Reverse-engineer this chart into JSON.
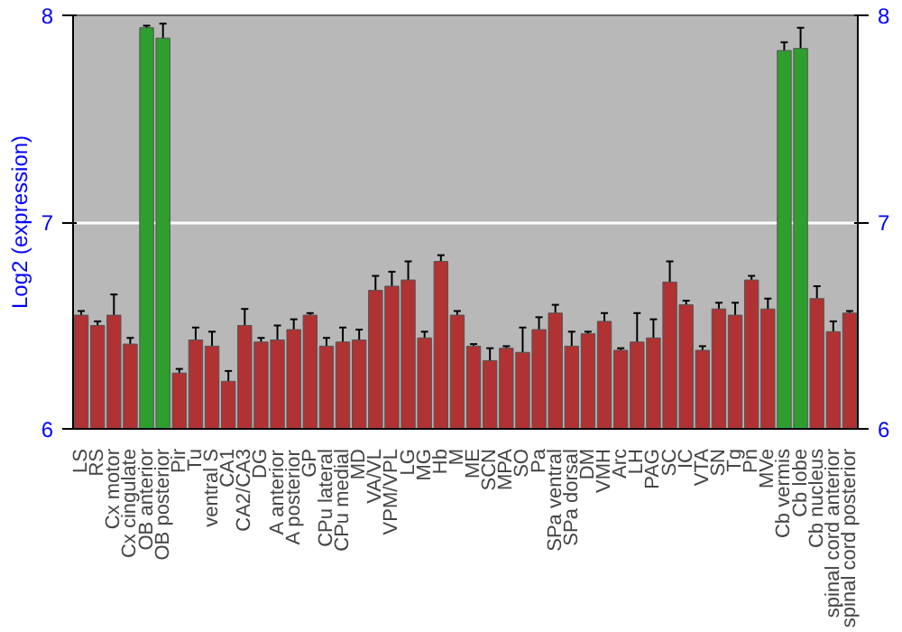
{
  "chart_data": {
    "type": "bar",
    "ylabel": "Log2 (expression)",
    "categories": [
      "LS",
      "RS",
      "Cx motor",
      "Cx cingulate",
      "OB anterior",
      "OB posterior",
      "Pir",
      "Tu",
      "ventral S",
      "CA1",
      "CA2/CA3",
      "DG",
      "A anterior",
      "A posterior",
      "GP",
      "CPu lateral",
      "CPu medial",
      "MD",
      "VA/VL",
      "VPM/VPL",
      "LG",
      "MG",
      "Hb",
      "M",
      "ME",
      "SCN",
      "MPA",
      "SO",
      "Pa",
      "SPa ventral",
      "SPa dorsal",
      "DM",
      "VMH",
      "Arc",
      "LH",
      "PAG",
      "SC",
      "IC",
      "VTA",
      "SN",
      "Tg",
      "Pn",
      "MVe",
      "Cb vermis",
      "Cb lobe",
      "Cb nucleus",
      "spinal cord anterior",
      "spinal cord posterior"
    ],
    "values": [
      6.55,
      6.5,
      6.55,
      6.41,
      7.94,
      7.89,
      6.27,
      6.43,
      6.4,
      6.23,
      6.5,
      6.42,
      6.43,
      6.48,
      6.55,
      6.4,
      6.42,
      6.43,
      6.67,
      6.69,
      6.72,
      6.44,
      6.81,
      6.55,
      6.4,
      6.33,
      6.39,
      6.37,
      6.48,
      6.56,
      6.4,
      6.46,
      6.52,
      6.38,
      6.42,
      6.44,
      6.71,
      6.6,
      6.38,
      6.58,
      6.55,
      6.72,
      6.58,
      7.83,
      7.84,
      6.63,
      6.47,
      6.56
    ],
    "errors": [
      0.02,
      0.02,
      0.1,
      0.03,
      0.01,
      0.07,
      0.02,
      0.06,
      0.07,
      0.05,
      0.08,
      0.02,
      0.07,
      0.05,
      0.01,
      0.04,
      0.07,
      0.05,
      0.07,
      0.07,
      0.09,
      0.03,
      0.03,
      0.02,
      0.01,
      0.06,
      0.01,
      0.12,
      0.06,
      0.04,
      0.07,
      0.01,
      0.04,
      0.01,
      0.14,
      0.09,
      0.1,
      0.02,
      0.02,
      0.03,
      0.06,
      0.02,
      0.05,
      0.04,
      0.1,
      0.06,
      0.05,
      0.01
    ],
    "colors": [
      "#b03232",
      "#b03232",
      "#b03232",
      "#b03232",
      "#2e9e2e",
      "#2e9e2e",
      "#b03232",
      "#b03232",
      "#b03232",
      "#b03232",
      "#b03232",
      "#b03232",
      "#b03232",
      "#b03232",
      "#b03232",
      "#b03232",
      "#b03232",
      "#b03232",
      "#b03232",
      "#b03232",
      "#b03232",
      "#b03232",
      "#b03232",
      "#b03232",
      "#b03232",
      "#b03232",
      "#b03232",
      "#b03232",
      "#b03232",
      "#b03232",
      "#b03232",
      "#b03232",
      "#b03232",
      "#b03232",
      "#b03232",
      "#b03232",
      "#b03232",
      "#b03232",
      "#b03232",
      "#b03232",
      "#b03232",
      "#b03232",
      "#b03232",
      "#2e9e2e",
      "#2e9e2e",
      "#b03232",
      "#b03232",
      "#b03232"
    ],
    "ylim": [
      6,
      8
    ],
    "yticks": [
      6,
      7,
      8
    ],
    "y2lim": [
      6,
      8
    ],
    "y2ticks": [
      6,
      7,
      8
    ],
    "grid": "y"
  }
}
